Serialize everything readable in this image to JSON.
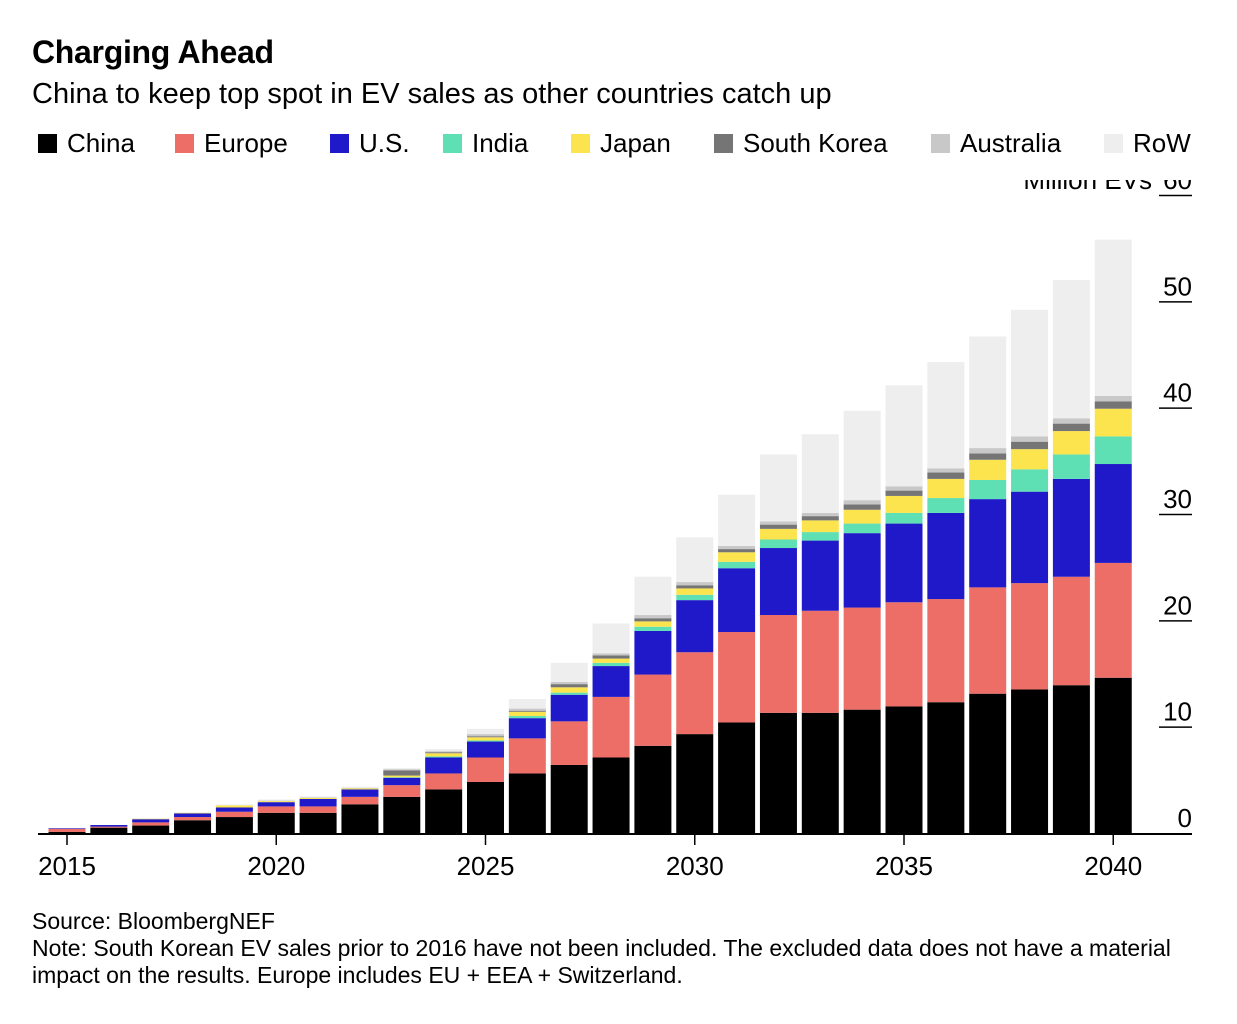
{
  "title": "Charging Ahead",
  "subtitle": "China to keep top spot in EV sales as other countries catch up",
  "legend": [
    {
      "name": "China",
      "color": "#000000"
    },
    {
      "name": "Europe",
      "color": "#ec6e67"
    },
    {
      "name": "U.S.",
      "color": "#1f19c9"
    },
    {
      "name": "India",
      "color": "#5ee0b4"
    },
    {
      "name": "Japan",
      "color": "#fce44f"
    },
    {
      "name": "South Korea",
      "color": "#757575"
    },
    {
      "name": "Australia",
      "color": "#c8c8c8"
    },
    {
      "name": "RoW",
      "color": "#eeeeee"
    }
  ],
  "source": "Source: BloombergNEF",
  "note": "Note: South Korean EV sales prior to 2016 have not been included. The excluded data does not have a material impact on the results. Europe includes EU + EEA + Switzerland.",
  "chart_data": {
    "type": "bar",
    "stacked": true,
    "ylabel": "Million EVs",
    "ylim": [
      0,
      60
    ],
    "yticks": [
      0,
      10,
      20,
      30,
      40,
      50,
      60
    ],
    "xticks": [
      2015,
      2020,
      2025,
      2030,
      2035,
      2040
    ],
    "categories": [
      2015,
      2016,
      2017,
      2018,
      2019,
      2020,
      2021,
      2022,
      2023,
      2024,
      2025,
      2026,
      2027,
      2028,
      2029,
      2030,
      2031,
      2032,
      2033,
      2034,
      2035,
      2036,
      2037,
      2038,
      2039,
      2040
    ],
    "series": [
      {
        "name": "China",
        "color": "#000000",
        "values": [
          0.1,
          0.5,
          0.7,
          1.2,
          1.5,
          1.9,
          1.9,
          2.7,
          3.4,
          4.1,
          4.8,
          5.6,
          6.4,
          7.1,
          8.2,
          9.3,
          10.4,
          11.3,
          11.3,
          11.6,
          11.9,
          12.3,
          13.1,
          13.5,
          13.9,
          14.6
        ]
      },
      {
        "name": "Europe",
        "color": "#ec6e67",
        "values": [
          0.3,
          0.1,
          0.3,
          0.3,
          0.5,
          0.6,
          0.6,
          0.7,
          1.1,
          1.5,
          2.3,
          3.3,
          4.1,
          5.7,
          6.7,
          7.7,
          8.5,
          9.2,
          9.6,
          9.6,
          9.8,
          9.7,
          10.0,
          10.0,
          10.2,
          10.8
        ]
      },
      {
        "name": "U.S.",
        "color": "#1f19c9",
        "values": [
          0.05,
          0.15,
          0.3,
          0.35,
          0.4,
          0.4,
          0.7,
          0.7,
          0.7,
          1.5,
          1.5,
          1.9,
          2.5,
          2.9,
          4.1,
          4.9,
          6.0,
          6.3,
          6.6,
          7.0,
          7.4,
          8.1,
          8.3,
          8.6,
          9.2,
          9.3
        ]
      },
      {
        "name": "India",
        "color": "#5ee0b4",
        "values": [
          0,
          0,
          0,
          0,
          0,
          0,
          0,
          0,
          0.05,
          0.1,
          0.1,
          0.2,
          0.2,
          0.3,
          0.4,
          0.5,
          0.6,
          0.8,
          0.8,
          0.9,
          1.0,
          1.4,
          1.8,
          2.1,
          2.3,
          2.6
        ]
      },
      {
        "name": "Japan",
        "color": "#fce44f",
        "values": [
          0,
          0,
          0.05,
          0.05,
          0.2,
          0.1,
          0.1,
          0.1,
          0.15,
          0.3,
          0.3,
          0.4,
          0.5,
          0.4,
          0.5,
          0.6,
          0.9,
          1.0,
          1.1,
          1.3,
          1.6,
          1.8,
          1.9,
          1.9,
          2.2,
          2.6
        ]
      },
      {
        "name": "South Korea",
        "color": "#757575",
        "values": [
          0,
          0,
          0,
          0,
          0,
          0,
          0,
          0,
          0.5,
          0.1,
          0.1,
          0.1,
          0.3,
          0.3,
          0.3,
          0.3,
          0.3,
          0.4,
          0.4,
          0.5,
          0.5,
          0.6,
          0.6,
          0.7,
          0.7,
          0.7
        ]
      },
      {
        "name": "Australia",
        "color": "#c8c8c8",
        "values": [
          0,
          0,
          0,
          0,
          0,
          0.05,
          0.05,
          0.05,
          0.1,
          0.1,
          0.2,
          0.2,
          0.2,
          0.2,
          0.3,
          0.3,
          0.3,
          0.3,
          0.3,
          0.4,
          0.4,
          0.4,
          0.5,
          0.5,
          0.5,
          0.5
        ]
      },
      {
        "name": "RoW",
        "color": "#eeeeee",
        "values": [
          0,
          0,
          0.05,
          0.05,
          0.1,
          0.1,
          0.1,
          0.1,
          0.1,
          0.2,
          0.5,
          0.9,
          1.8,
          2.8,
          3.6,
          4.2,
          4.8,
          6.3,
          7.4,
          8.4,
          9.5,
          10.0,
          10.5,
          11.9,
          13.0,
          14.7
        ]
      }
    ]
  }
}
